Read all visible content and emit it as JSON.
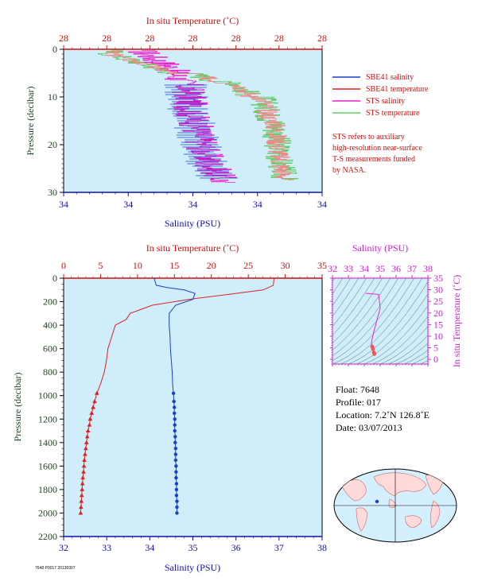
{
  "chart_data": [
    {
      "id": "top",
      "type": "line",
      "top_axis_label": "In situ Temperature (˚C)",
      "bottom_axis_label": "Salinity (PSU)",
      "left_axis_label": "Pressure (decibar)",
      "top_ticks": [
        "28",
        "28",
        "28",
        "28",
        "28",
        "28",
        "28"
      ],
      "bottom_ticks": [
        "34",
        "34",
        "34",
        "34",
        "34"
      ],
      "y_ticks": [
        0,
        10,
        20,
        30
      ],
      "ylim": [
        0,
        30
      ],
      "legend": [
        {
          "name": "SBE41 salinity",
          "color": "#1a3fcc"
        },
        {
          "name": "SBE41 temperature",
          "color": "#dd2020"
        },
        {
          "name": "STS salinity",
          "color": "#ee22cc"
        },
        {
          "name": "STS temperature",
          "color": "#66cc66"
        }
      ],
      "note": [
        "STS refers to auxiliary",
        "high-resolution near-surface",
        "T-S measurements funded",
        "by NASA."
      ]
    },
    {
      "id": "main",
      "type": "line",
      "top_axis_label": "In situ Temperature (˚C)",
      "bottom_axis_label": "Salinity (PSU)",
      "left_axis_label": "Pressure (decibar)",
      "temp_ticks": [
        0,
        5,
        10,
        15,
        20,
        25,
        30,
        35
      ],
      "sal_ticks": [
        32,
        33,
        34,
        35,
        36,
        37,
        38
      ],
      "p_ticks": [
        0,
        200,
        400,
        600,
        800,
        1000,
        1200,
        1400,
        1600,
        1800,
        2000,
        2200
      ],
      "xlim_temp": [
        0,
        35
      ],
      "xlim_sal": [
        32,
        38
      ],
      "ylim": [
        0,
        2200
      ],
      "temperature_profile": [
        [
          28.5,
          0
        ],
        [
          28.4,
          60
        ],
        [
          27,
          100
        ],
        [
          22,
          140
        ],
        [
          17,
          180
        ],
        [
          12,
          230
        ],
        [
          9,
          300
        ],
        [
          8.5,
          350
        ],
        [
          7,
          400
        ],
        [
          6.5,
          500
        ],
        [
          6,
          600
        ],
        [
          5.8,
          700
        ],
        [
          5.5,
          800
        ],
        [
          5,
          900
        ],
        [
          4.5,
          980
        ]
      ],
      "temperature_points": [
        [
          4.5,
          980
        ],
        [
          4.2,
          1050
        ],
        [
          4.0,
          1100
        ],
        [
          3.8,
          1150
        ],
        [
          3.6,
          1200
        ],
        [
          3.5,
          1250
        ],
        [
          3.3,
          1300
        ],
        [
          3.2,
          1350
        ],
        [
          3.1,
          1400
        ],
        [
          3.0,
          1450
        ],
        [
          2.9,
          1500
        ],
        [
          2.8,
          1550
        ],
        [
          2.75,
          1600
        ],
        [
          2.7,
          1650
        ],
        [
          2.6,
          1700
        ],
        [
          2.55,
          1750
        ],
        [
          2.5,
          1800
        ],
        [
          2.45,
          1850
        ],
        [
          2.4,
          1900
        ],
        [
          2.35,
          1950
        ],
        [
          2.3,
          2000
        ]
      ],
      "salinity_profile": [
        [
          34.1,
          0
        ],
        [
          34.15,
          60
        ],
        [
          34.4,
          80
        ],
        [
          34.8,
          100
        ],
        [
          35.05,
          130
        ],
        [
          35.0,
          180
        ],
        [
          34.6,
          230
        ],
        [
          34.45,
          300
        ],
        [
          34.45,
          400
        ],
        [
          34.47,
          500
        ],
        [
          34.48,
          600
        ],
        [
          34.5,
          700
        ],
        [
          34.52,
          800
        ],
        [
          34.53,
          900
        ],
        [
          34.55,
          980
        ]
      ],
      "salinity_points": [
        [
          34.55,
          980
        ],
        [
          34.56,
          1050
        ],
        [
          34.57,
          1100
        ],
        [
          34.57,
          1150
        ],
        [
          34.58,
          1200
        ],
        [
          34.58,
          1250
        ],
        [
          34.58,
          1300
        ],
        [
          34.59,
          1350
        ],
        [
          34.59,
          1400
        ],
        [
          34.6,
          1450
        ],
        [
          34.6,
          1500
        ],
        [
          34.6,
          1550
        ],
        [
          34.61,
          1600
        ],
        [
          34.61,
          1650
        ],
        [
          34.61,
          1700
        ],
        [
          34.62,
          1750
        ],
        [
          34.62,
          1800
        ],
        [
          34.62,
          1850
        ],
        [
          34.63,
          1900
        ],
        [
          34.63,
          1950
        ],
        [
          34.63,
          2000
        ]
      ]
    },
    {
      "id": "ts",
      "type": "line",
      "top_axis_label": "Salinity (PSU)",
      "right_axis_label": "In situ Temperature (˚C)",
      "sal_ticks": [
        32,
        33,
        34,
        35,
        36,
        37,
        38
      ],
      "temp_ticks": [
        0,
        5,
        10,
        15,
        20,
        25,
        30,
        35
      ],
      "xlim": [
        32,
        38
      ],
      "ylim": [
        -2,
        35
      ],
      "ts_curve": [
        [
          34.1,
          28.5
        ],
        [
          34.9,
          28
        ],
        [
          35.0,
          22
        ],
        [
          34.8,
          17
        ],
        [
          34.6,
          12
        ],
        [
          34.5,
          9
        ],
        [
          34.45,
          7
        ],
        [
          34.5,
          5.5
        ],
        [
          34.55,
          4.5
        ],
        [
          34.6,
          3
        ],
        [
          34.63,
          2.3
        ]
      ]
    }
  ],
  "float_info": {
    "float": "Float:  7648",
    "profile": "Profile:  017",
    "location": "Location:  7.2˚N  126.8˚E",
    "date": "Date:  03/07/2013"
  },
  "footer_code": "7648 P0017 20130307"
}
